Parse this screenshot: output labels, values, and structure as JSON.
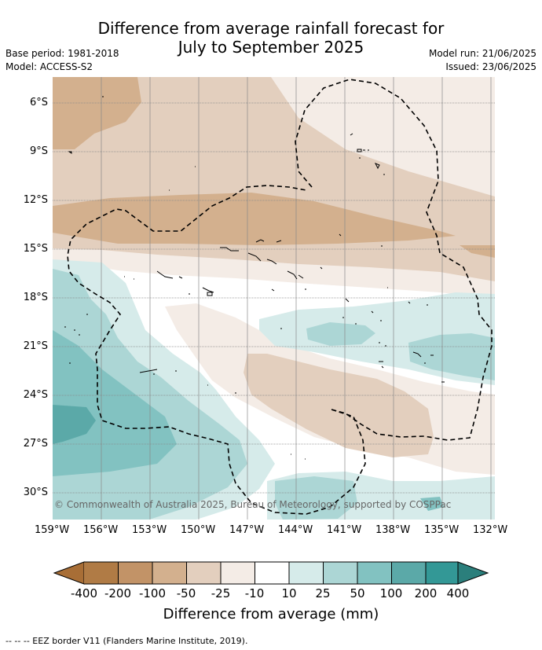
{
  "title_line1": "Difference from average rainfall forecast for",
  "title_line2": "July to September 2025",
  "meta": {
    "base_period": "Base period: 1981-2018",
    "model": "Model: ACCESS-S2",
    "model_run": "Model run: 21/06/2025",
    "issued": "Issued: 23/06/2025"
  },
  "map": {
    "lat_labels": [
      "6°S",
      "9°S",
      "12°S",
      "15°S",
      "18°S",
      "21°S",
      "24°S",
      "27°S",
      "30°S"
    ],
    "lon_labels": [
      "159°W",
      "156°W",
      "153°W",
      "150°W",
      "147°W",
      "144°W",
      "141°W",
      "138°W",
      "135°W",
      "132°W"
    ],
    "copyright": "© Commonwealth of Australia 2025, Bureau of Meteorology, supported by COSPPac"
  },
  "colorbar": {
    "labels": [
      "-400",
      "-200",
      "-100",
      "-50",
      "-25",
      "-10",
      "10",
      "25",
      "50",
      "100",
      "200",
      "400"
    ],
    "colors": [
      "#a86e36",
      "#b07b45",
      "#c29367",
      "#d3b08e",
      "#e3cfbe",
      "#f4ece6",
      "#ffffff",
      "#d6ebea",
      "#acd6d5",
      "#82c2c1",
      "#5ba9a8",
      "#339896",
      "#2b7f7c"
    ],
    "title": "Difference from average (mm)"
  },
  "footnote": "-- -- -- EEZ border V11 (Flanders Marine Institute, 2019)."
}
